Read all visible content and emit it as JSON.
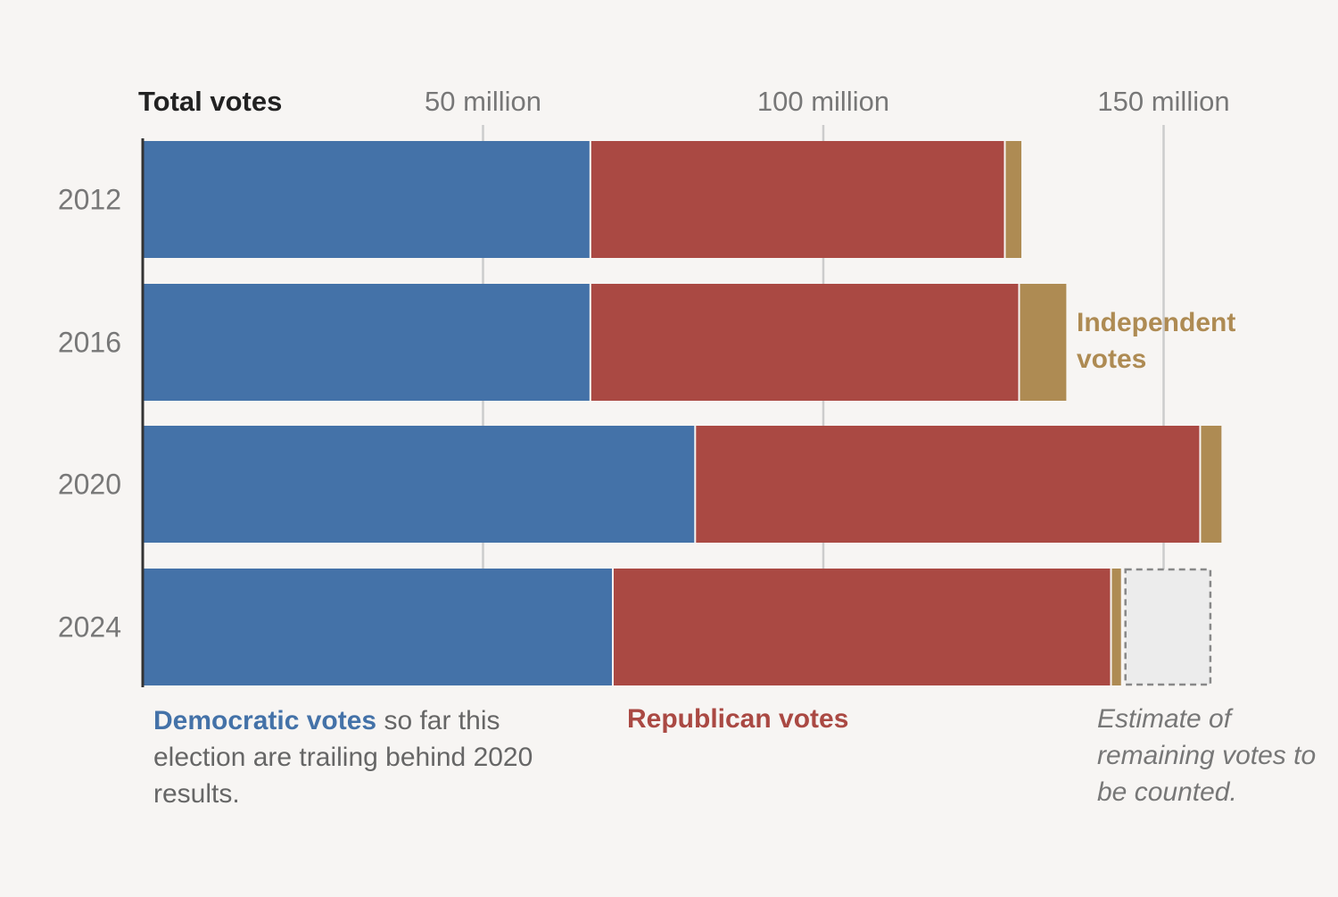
{
  "chart_data": {
    "type": "bar",
    "orientation": "horizontal",
    "stacked": true,
    "axis_title": "Total votes",
    "categories": [
      "2012",
      "2016",
      "2020",
      "2024"
    ],
    "series": [
      {
        "name": "Democratic votes",
        "color": "#4472a8",
        "values": [
          65.9,
          65.9,
          81.3,
          69.2
        ]
      },
      {
        "name": "Republican votes",
        "color": "#aa4943",
        "values": [
          60.9,
          63.0,
          74.2,
          73.2
        ]
      },
      {
        "name": "Independent votes",
        "color": "#ae8b53",
        "values": [
          2.3,
          6.8,
          3.0,
          1.6
        ]
      },
      {
        "name": "Estimate of remaining votes",
        "color": "#ececec",
        "values": [
          0,
          0,
          0,
          13.0
        ]
      }
    ],
    "xlim": [
      0,
      165
    ],
    "xticks": [
      50,
      100,
      150
    ],
    "xtick_labels": [
      "50 million",
      "100 million",
      "150 million"
    ],
    "grid": true
  },
  "annotations": {
    "democratic_highlight": "Democratic votes",
    "democratic_rest": " so far this election are trailing behind 2020 results.",
    "republican": "Republican votes",
    "independent": "Independent votes",
    "remaining": "Estimate of remaining votes to be counted."
  }
}
